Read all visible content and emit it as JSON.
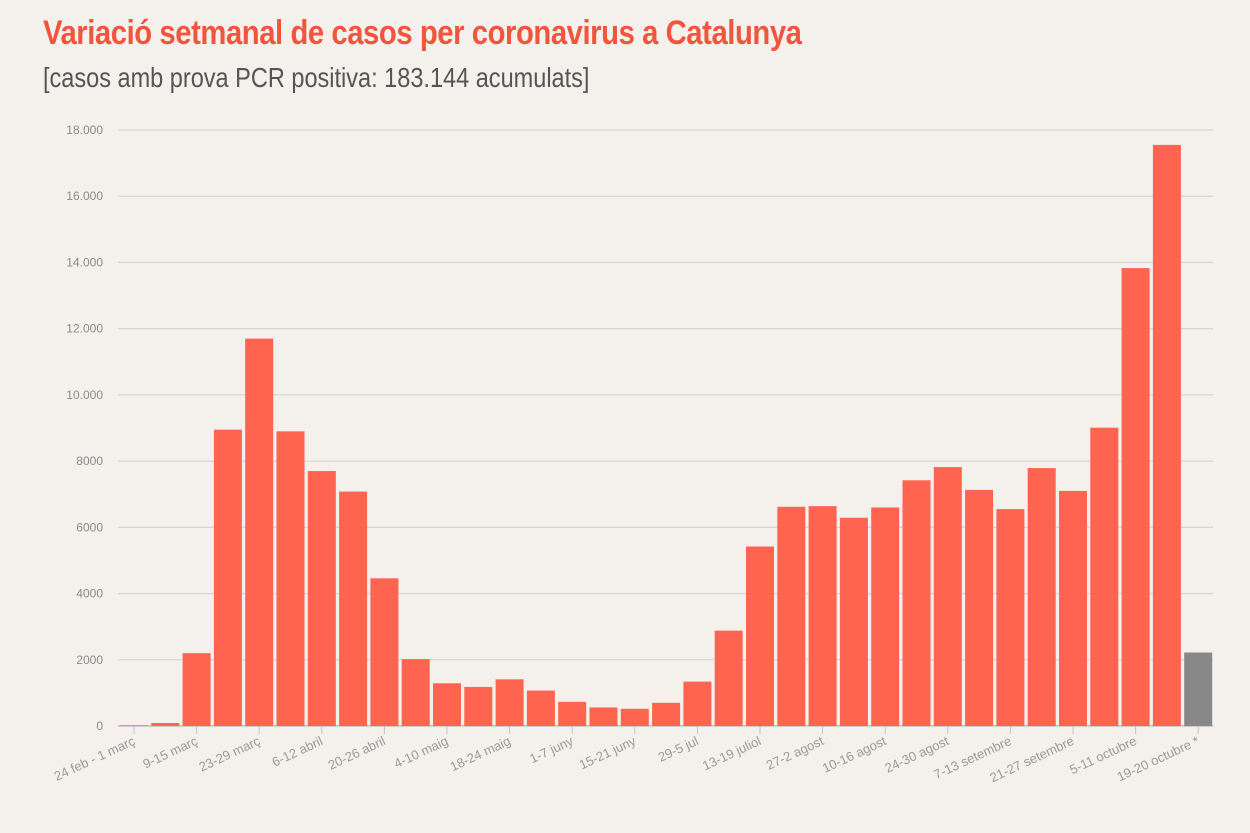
{
  "header": {
    "title": "Variació setmanal de casos per coronavirus a Catalunya",
    "subtitle": "[casos amb prova PCR positiva: 183.144 acumulats]"
  },
  "colors": {
    "bar": "#ff6450",
    "partial_bar": "#888888",
    "grid": "#d6d6d6",
    "title": "#f2553d"
  },
  "chart_data": {
    "type": "bar",
    "title": "Variació setmanal de casos per coronavirus a Catalunya",
    "subtitle": "[casos amb prova PCR positiva: 183.144 acumulats]",
    "ylim": [
      0,
      18000
    ],
    "grid": true,
    "yticks": [
      {
        "value": 0,
        "label": "0"
      },
      {
        "value": 2000,
        "label": "2000"
      },
      {
        "value": 4000,
        "label": "4000"
      },
      {
        "value": 6000,
        "label": "6000"
      },
      {
        "value": 8000,
        "label": "8000"
      },
      {
        "value": 10000,
        "label": "10.000"
      },
      {
        "value": 12000,
        "label": "12.000"
      },
      {
        "value": 14000,
        "label": "14.000"
      },
      {
        "value": 16000,
        "label": "16.000"
      },
      {
        "value": 18000,
        "label": "18.000"
      }
    ],
    "values": [
      20,
      90,
      2200,
      8950,
      11700,
      8900,
      7700,
      7080,
      4460,
      2020,
      1290,
      1180,
      1410,
      1070,
      730,
      560,
      520,
      700,
      1340,
      2880,
      5420,
      6620,
      6640,
      6290,
      6600,
      7420,
      7820,
      7130,
      6550,
      7790,
      7100,
      9010,
      13830,
      17550,
      2220
    ],
    "partial_index": 34,
    "tick_labels": [
      {
        "index": 0,
        "label": "24 feb - 1 març"
      },
      {
        "index": 2,
        "label": "9-15 març"
      },
      {
        "index": 4,
        "label": "23-29 març"
      },
      {
        "index": 6,
        "label": "6-12 abril"
      },
      {
        "index": 8,
        "label": "20-26 abril"
      },
      {
        "index": 10,
        "label": "4-10 maig"
      },
      {
        "index": 12,
        "label": "18-24 maig"
      },
      {
        "index": 14,
        "label": "1-7 juny"
      },
      {
        "index": 16,
        "label": "15-21 juny"
      },
      {
        "index": 18,
        "label": "29-5 jul"
      },
      {
        "index": 20,
        "label": "13-19 juliol"
      },
      {
        "index": 22,
        "label": "27-2 agost"
      },
      {
        "index": 24,
        "label": "10-16 agost"
      },
      {
        "index": 26,
        "label": "24-30 agost"
      },
      {
        "index": 28,
        "label": "7-13 setembre"
      },
      {
        "index": 30,
        "label": "21-27 setembre"
      },
      {
        "index": 32,
        "label": "5-11 octubre"
      },
      {
        "index": 34,
        "label": "19-20 octubre *"
      }
    ]
  }
}
